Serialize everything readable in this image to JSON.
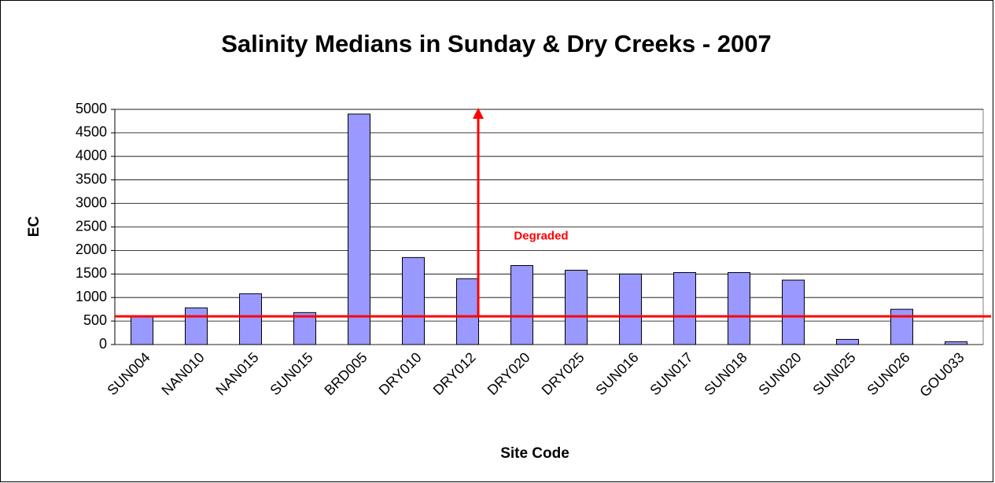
{
  "chart_data": {
    "type": "bar",
    "title": "Salinity Medians in  Sunday & Dry Creeks - 2007",
    "x_label": "Site Code",
    "y_label": "EC",
    "categories": [
      "SUN004",
      "NAN010",
      "NAN015",
      "SUN015",
      "BRD005",
      "DRY010",
      "DRY012",
      "DRY020",
      "DRY025",
      "SUN016",
      "SUN017",
      "SUN018",
      "SUN020",
      "SUN025",
      "SUN026",
      "GOU033"
    ],
    "values": [
      600,
      780,
      1080,
      680,
      4900,
      1850,
      1400,
      1680,
      1580,
      1500,
      1530,
      1530,
      1370,
      110,
      750,
      60
    ],
    "color": "#9999ff",
    "ylim": [
      0,
      5000
    ],
    "yticks": [
      0,
      500,
      1000,
      1500,
      2000,
      2500,
      3000,
      3500,
      4000,
      4500,
      5000
    ],
    "grid": true,
    "threshold": 600,
    "threshold_color": "#ff0000",
    "annotation": "Degraded"
  }
}
